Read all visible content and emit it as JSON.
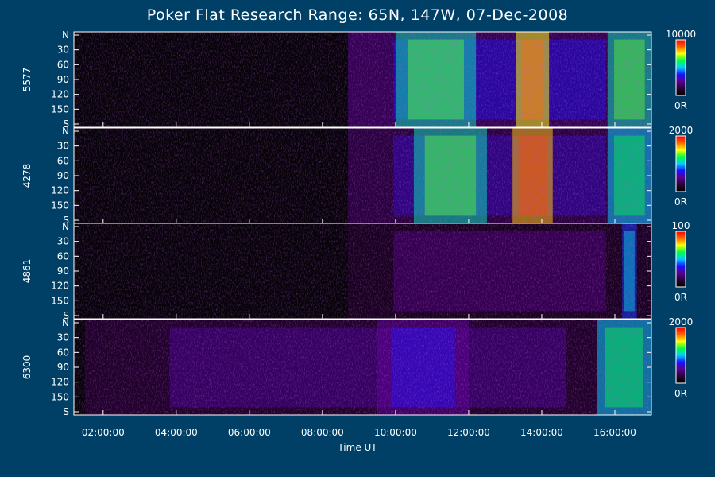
{
  "title": "Poker Flat Research Range: 65N, 147W, 07-Dec-2008",
  "xlabel": "Time UT",
  "chart_data": [
    {
      "type": "heatmap",
      "panel_label": "5577",
      "x_range_utc_hours": [
        1.2,
        17.0
      ],
      "y_ticks": [
        "N",
        "30",
        "60",
        "90",
        "120",
        "150",
        "S"
      ],
      "colorbar": {
        "max": "10000",
        "min": "0R"
      },
      "features": [
        {
          "t_start": 8.7,
          "t_end": 17.0,
          "level": 0.25
        },
        {
          "t_start": 10.0,
          "t_end": 12.2,
          "level": 0.55
        },
        {
          "t_start": 13.3,
          "t_end": 14.2,
          "level": 0.75
        },
        {
          "t_start": 15.8,
          "t_end": 17.0,
          "level": 0.55
        }
      ]
    },
    {
      "type": "heatmap",
      "panel_label": "4278",
      "x_range_utc_hours": [
        1.2,
        17.0
      ],
      "y_ticks": [
        "N",
        "30",
        "60",
        "90",
        "120",
        "150",
        "S"
      ],
      "colorbar": {
        "max": "2000",
        "min": "0R"
      },
      "features": [
        {
          "t_start": 8.7,
          "t_end": 17.0,
          "level": 0.2
        },
        {
          "t_start": 10.5,
          "t_end": 12.5,
          "level": 0.55
        },
        {
          "t_start": 13.2,
          "t_end": 14.3,
          "level": 0.8
        },
        {
          "t_start": 15.8,
          "t_end": 17.0,
          "level": 0.5
        }
      ]
    },
    {
      "type": "heatmap",
      "panel_label": "4861",
      "x_range_utc_hours": [
        1.2,
        17.0
      ],
      "y_ticks": [
        "N",
        "30",
        "60",
        "90",
        "120",
        "150",
        "S"
      ],
      "colorbar": {
        "max": "100",
        "min": "0R"
      },
      "features": [
        {
          "t_start": 8.7,
          "t_end": 17.0,
          "level": 0.12
        },
        {
          "t_start": 16.2,
          "t_end": 16.6,
          "level": 0.4
        }
      ]
    },
    {
      "type": "heatmap",
      "panel_label": "6300",
      "x_range_utc_hours": [
        1.2,
        17.0
      ],
      "y_ticks": [
        "N",
        "30",
        "60",
        "90",
        "120",
        "150",
        "S"
      ],
      "colorbar": {
        "max": "2000",
        "min": "0R"
      },
      "features": [
        {
          "t_start": 1.5,
          "t_end": 17.0,
          "level": 0.15
        },
        {
          "t_start": 9.5,
          "t_end": 12.0,
          "level": 0.25
        },
        {
          "t_start": 15.5,
          "t_end": 17.0,
          "level": 0.5
        }
      ]
    }
  ],
  "x_ticks": [
    {
      "hour": 2,
      "label": "02:00:00"
    },
    {
      "hour": 4,
      "label": "04:00:00"
    },
    {
      "hour": 6,
      "label": "06:00:00"
    },
    {
      "hour": 8,
      "label": "08:00:00"
    },
    {
      "hour": 10,
      "label": "10:00:00"
    },
    {
      "hour": 12,
      "label": "12:00:00"
    },
    {
      "hour": 14,
      "label": "14:00:00"
    },
    {
      "hour": 16,
      "label": "16:00:00"
    }
  ],
  "colors": {
    "background": "#003f66",
    "axis": "#ffffff",
    "colormap": [
      "#000000",
      "#2a0033",
      "#5a0090",
      "#1a10ff",
      "#00ccff",
      "#00ff40",
      "#ffff00",
      "#ff6600",
      "#ff0000"
    ]
  }
}
